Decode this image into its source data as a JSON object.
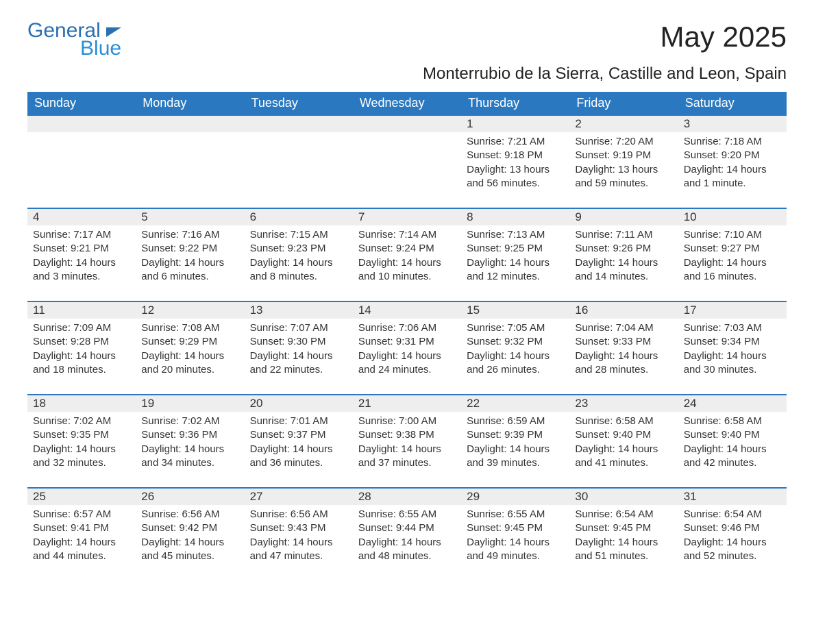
{
  "brand": {
    "part1": "General",
    "part2": "Blue"
  },
  "title": "May 2025",
  "location": "Monterrubio de la Sierra, Castille and Leon, Spain",
  "colors": {
    "header_bg": "#2a78c0",
    "header_text": "#ffffff",
    "daynum_bg": "#eeeeee",
    "text": "#333333",
    "border": "#2a78c0",
    "brand_dark": "#2a6fb0",
    "brand_light": "#2a8fd4",
    "page_bg": "#ffffff"
  },
  "typography": {
    "title_fontsize": 42,
    "location_fontsize": 24,
    "header_fontsize": 18,
    "daynum_fontsize": 17,
    "body_fontsize": 15,
    "font_family": "Arial"
  },
  "layout": {
    "columns": 7,
    "rows": 5,
    "start_weekday": "Sunday",
    "first_day_column_index": 4
  },
  "weekdays": [
    "Sunday",
    "Monday",
    "Tuesday",
    "Wednesday",
    "Thursday",
    "Friday",
    "Saturday"
  ],
  "labels": {
    "sunrise": "Sunrise",
    "sunset": "Sunset",
    "daylight": "Daylight"
  },
  "days": [
    {
      "n": 1,
      "sunrise": "7:21 AM",
      "sunset": "9:18 PM",
      "daylight": "13 hours and 56 minutes."
    },
    {
      "n": 2,
      "sunrise": "7:20 AM",
      "sunset": "9:19 PM",
      "daylight": "13 hours and 59 minutes."
    },
    {
      "n": 3,
      "sunrise": "7:18 AM",
      "sunset": "9:20 PM",
      "daylight": "14 hours and 1 minute."
    },
    {
      "n": 4,
      "sunrise": "7:17 AM",
      "sunset": "9:21 PM",
      "daylight": "14 hours and 3 minutes."
    },
    {
      "n": 5,
      "sunrise": "7:16 AM",
      "sunset": "9:22 PM",
      "daylight": "14 hours and 6 minutes."
    },
    {
      "n": 6,
      "sunrise": "7:15 AM",
      "sunset": "9:23 PM",
      "daylight": "14 hours and 8 minutes."
    },
    {
      "n": 7,
      "sunrise": "7:14 AM",
      "sunset": "9:24 PM",
      "daylight": "14 hours and 10 minutes."
    },
    {
      "n": 8,
      "sunrise": "7:13 AM",
      "sunset": "9:25 PM",
      "daylight": "14 hours and 12 minutes."
    },
    {
      "n": 9,
      "sunrise": "7:11 AM",
      "sunset": "9:26 PM",
      "daylight": "14 hours and 14 minutes."
    },
    {
      "n": 10,
      "sunrise": "7:10 AM",
      "sunset": "9:27 PM",
      "daylight": "14 hours and 16 minutes."
    },
    {
      "n": 11,
      "sunrise": "7:09 AM",
      "sunset": "9:28 PM",
      "daylight": "14 hours and 18 minutes."
    },
    {
      "n": 12,
      "sunrise": "7:08 AM",
      "sunset": "9:29 PM",
      "daylight": "14 hours and 20 minutes."
    },
    {
      "n": 13,
      "sunrise": "7:07 AM",
      "sunset": "9:30 PM",
      "daylight": "14 hours and 22 minutes."
    },
    {
      "n": 14,
      "sunrise": "7:06 AM",
      "sunset": "9:31 PM",
      "daylight": "14 hours and 24 minutes."
    },
    {
      "n": 15,
      "sunrise": "7:05 AM",
      "sunset": "9:32 PM",
      "daylight": "14 hours and 26 minutes."
    },
    {
      "n": 16,
      "sunrise": "7:04 AM",
      "sunset": "9:33 PM",
      "daylight": "14 hours and 28 minutes."
    },
    {
      "n": 17,
      "sunrise": "7:03 AM",
      "sunset": "9:34 PM",
      "daylight": "14 hours and 30 minutes."
    },
    {
      "n": 18,
      "sunrise": "7:02 AM",
      "sunset": "9:35 PM",
      "daylight": "14 hours and 32 minutes."
    },
    {
      "n": 19,
      "sunrise": "7:02 AM",
      "sunset": "9:36 PM",
      "daylight": "14 hours and 34 minutes."
    },
    {
      "n": 20,
      "sunrise": "7:01 AM",
      "sunset": "9:37 PM",
      "daylight": "14 hours and 36 minutes."
    },
    {
      "n": 21,
      "sunrise": "7:00 AM",
      "sunset": "9:38 PM",
      "daylight": "14 hours and 37 minutes."
    },
    {
      "n": 22,
      "sunrise": "6:59 AM",
      "sunset": "9:39 PM",
      "daylight": "14 hours and 39 minutes."
    },
    {
      "n": 23,
      "sunrise": "6:58 AM",
      "sunset": "9:40 PM",
      "daylight": "14 hours and 41 minutes."
    },
    {
      "n": 24,
      "sunrise": "6:58 AM",
      "sunset": "9:40 PM",
      "daylight": "14 hours and 42 minutes."
    },
    {
      "n": 25,
      "sunrise": "6:57 AM",
      "sunset": "9:41 PM",
      "daylight": "14 hours and 44 minutes."
    },
    {
      "n": 26,
      "sunrise": "6:56 AM",
      "sunset": "9:42 PM",
      "daylight": "14 hours and 45 minutes."
    },
    {
      "n": 27,
      "sunrise": "6:56 AM",
      "sunset": "9:43 PM",
      "daylight": "14 hours and 47 minutes."
    },
    {
      "n": 28,
      "sunrise": "6:55 AM",
      "sunset": "9:44 PM",
      "daylight": "14 hours and 48 minutes."
    },
    {
      "n": 29,
      "sunrise": "6:55 AM",
      "sunset": "9:45 PM",
      "daylight": "14 hours and 49 minutes."
    },
    {
      "n": 30,
      "sunrise": "6:54 AM",
      "sunset": "9:45 PM",
      "daylight": "14 hours and 51 minutes."
    },
    {
      "n": 31,
      "sunrise": "6:54 AM",
      "sunset": "9:46 PM",
      "daylight": "14 hours and 52 minutes."
    }
  ]
}
